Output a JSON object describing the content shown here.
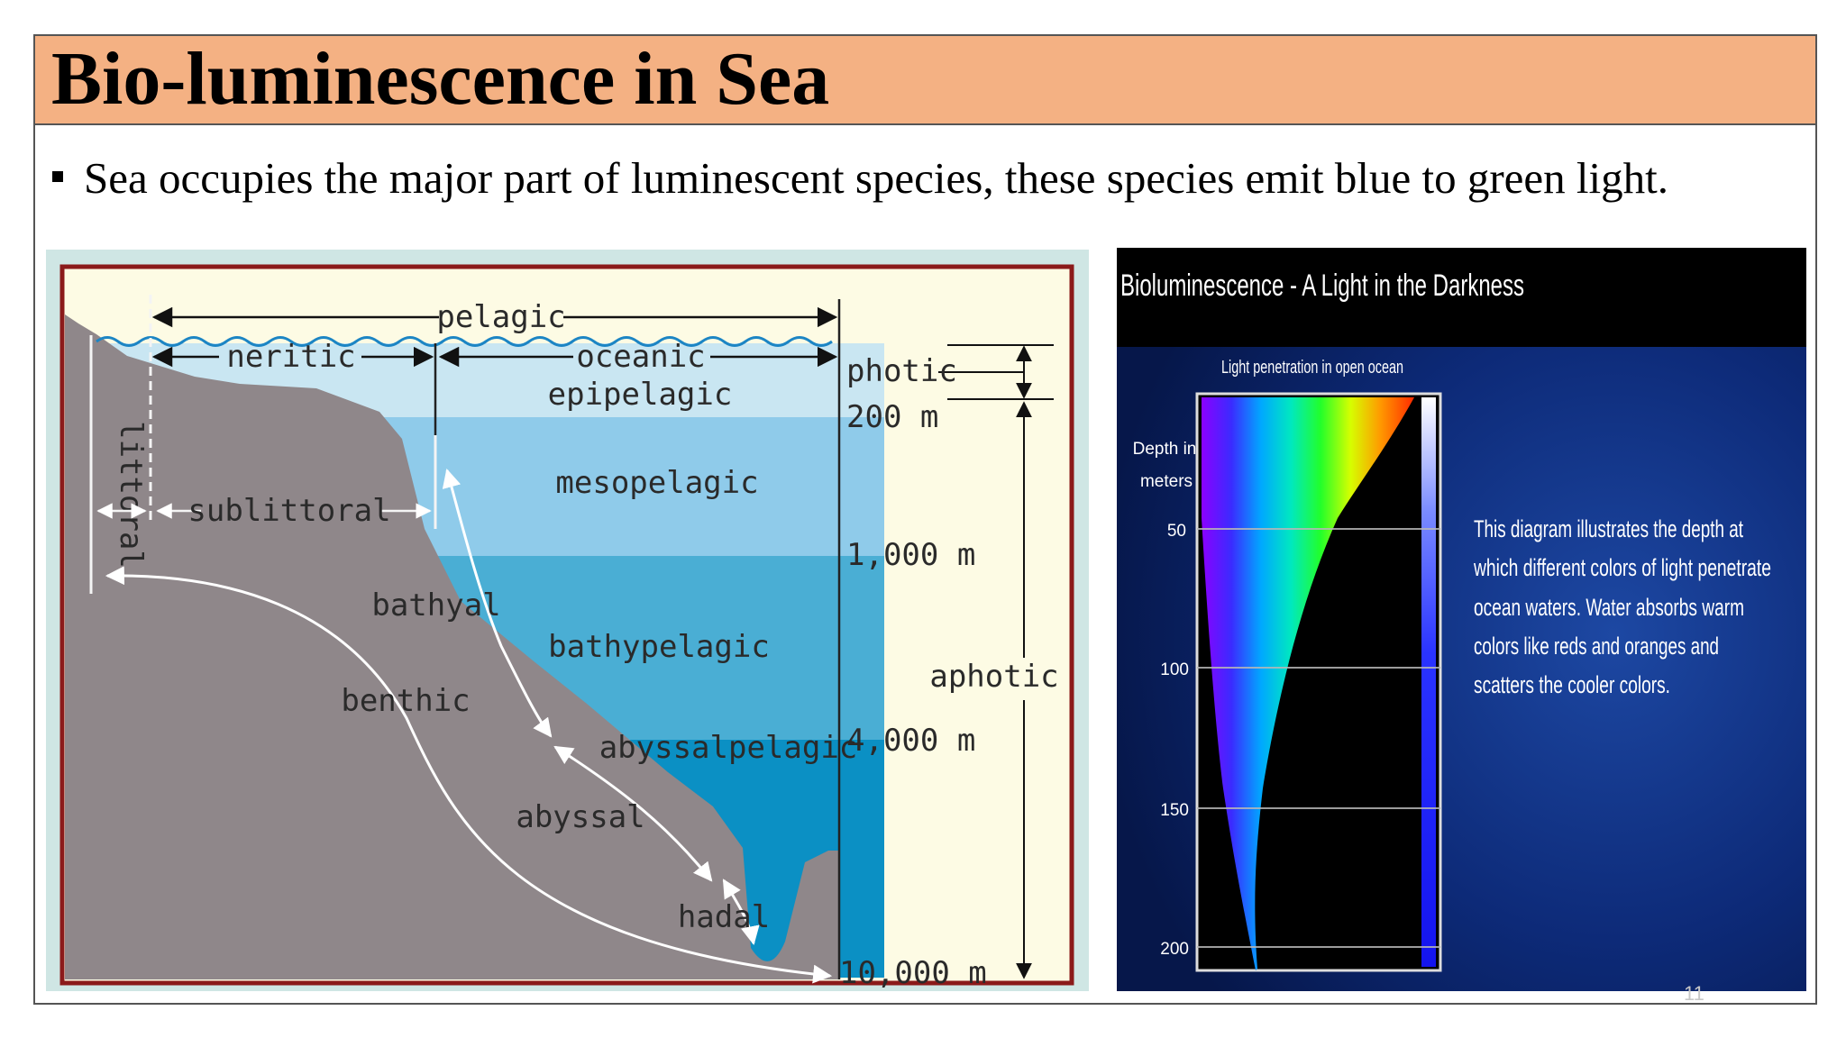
{
  "slide": {
    "title": "Bio-luminescence in Sea",
    "bullet": "Sea occupies the major part of luminescent species, these species emit blue to green light.",
    "page_number": "11"
  },
  "zones_diagram": {
    "horizontal_labels": {
      "pelagic": "pelagic",
      "neritic": "neritic",
      "oceanic": "oceanic",
      "littoral": "littoral",
      "sublittoral": "sublittoral"
    },
    "water_layers": {
      "epipelagic": "epipelagic",
      "mesopelagic": "mesopelagic",
      "bathypelagic": "bathypelagic",
      "abyssalpelagic": "abyssalpelagic"
    },
    "benthic_labels": {
      "bathyal": "bathyal",
      "benthic": "benthic",
      "abyssal": "abyssal",
      "hadal": "hadal"
    },
    "depth_labels": {
      "d200": "200 m",
      "d1000": "1,000 m",
      "d4000": "4,000 m",
      "d10000": "10,000 m"
    },
    "light_zones": {
      "photic": "photic",
      "aphotic": "aphotic"
    },
    "colors": {
      "epipelagic": "#c9e6f2",
      "mesopelagic": "#8fcbea",
      "bathypelagic": "#4aaed4",
      "abyssalpelagic": "#0b90c4",
      "seafloor": "#8f878a",
      "background": "#fdfbe4",
      "frame": "#8b1a1a"
    }
  },
  "spectrum_panel": {
    "title": "Bioluminescence - A Light in the Darkness",
    "chart_title": "Light penetration in open ocean",
    "depth_label_line1": "Depth in",
    "depth_label_line2": "meters",
    "depth_ticks": [
      "50",
      "100",
      "150",
      "200"
    ],
    "description_lines": [
      "This diagram illustrates the depth at",
      "which different colors of light penetrate",
      "ocean waters. Water absorbs warm",
      "colors like reds and oranges and",
      "scatters the cooler colors."
    ]
  }
}
